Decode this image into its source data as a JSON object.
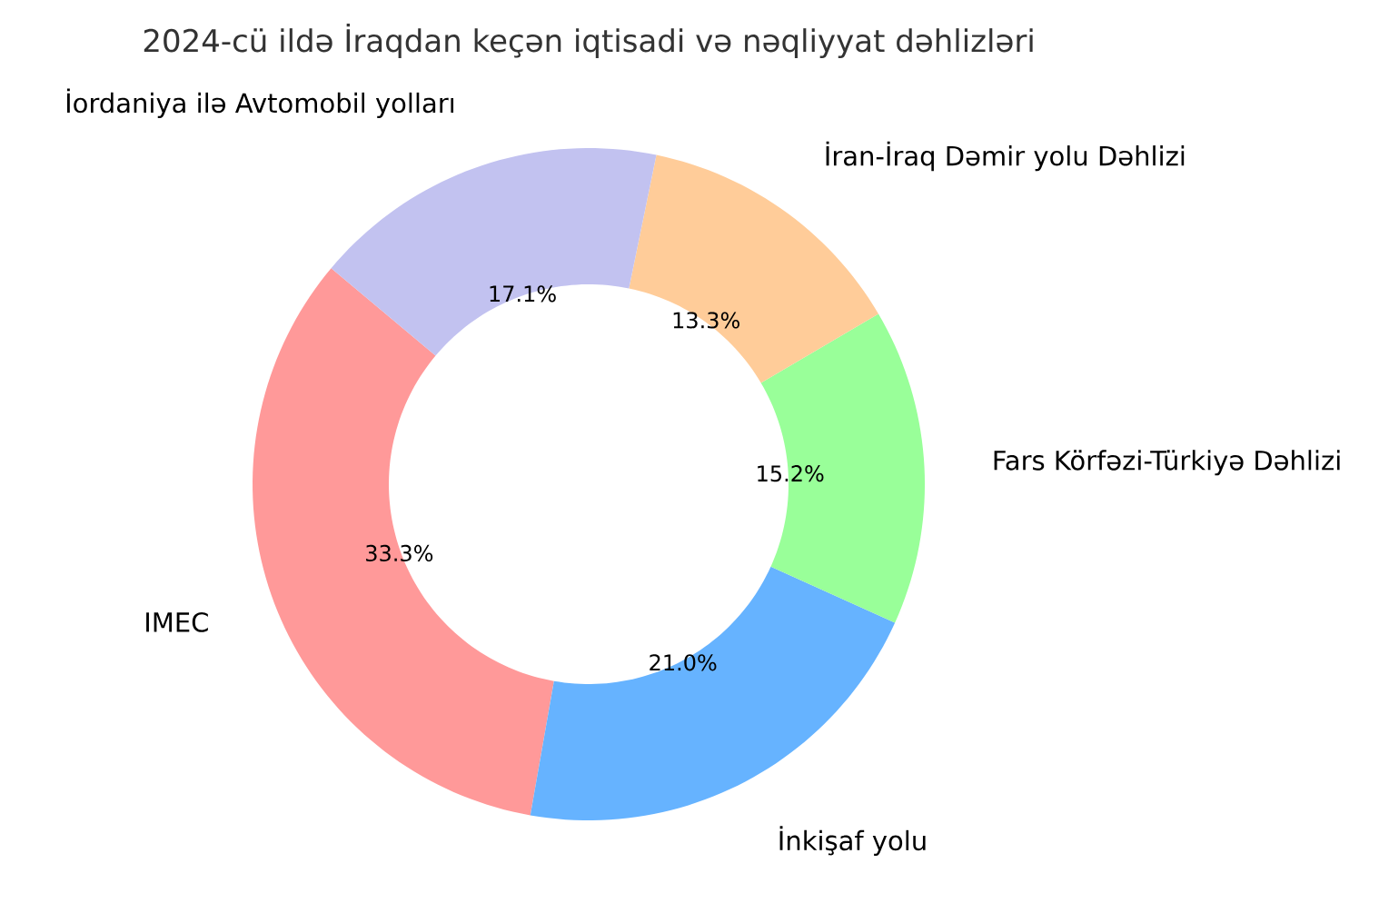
{
  "chart_data": {
    "type": "donut",
    "title": "2024-cü ildə İraqdan keçən iqtisadi və nəqliyyat dəhlizləri",
    "categories": [
      "IMEC",
      "İnkişaf yolu",
      "Fars Körfəzi-Türkiyə Dəhlizi",
      "İran-İraq Dəmir yolu Dəhlizi",
      "İordaniya ilə Avtomobil yolları"
    ],
    "values": [
      33.3,
      21.0,
      15.2,
      13.3,
      17.1
    ],
    "value_labels": [
      "33.3%",
      "21.0%",
      "15.2%",
      "13.3%",
      "17.1%"
    ],
    "colors": [
      "#ff9999",
      "#66b3ff",
      "#99ff99",
      "#ffcc99",
      "#c2c2f0"
    ]
  }
}
